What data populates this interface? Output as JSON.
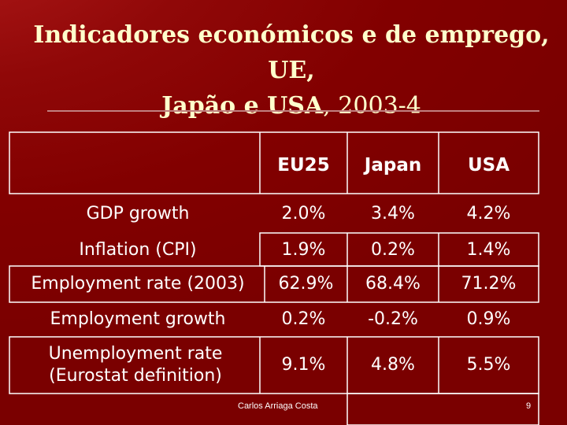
{
  "slide": {
    "title_line1": "Indicadores económicos e de emprego, UE,",
    "title_line2a": "Japão e USA",
    "title_line2b": ", 2003-4"
  },
  "table": {
    "columns": [
      "EU25",
      "Japan",
      "USA"
    ],
    "rows": [
      {
        "label": "GDP growth",
        "values": [
          "2.0%",
          "3.4%",
          "4.2%"
        ]
      },
      {
        "label": "Inflation (CPI)",
        "values": [
          "1.9%",
          "0.2%",
          "1.4%"
        ]
      },
      {
        "label": "Employment rate (2003)",
        "values": [
          "62.9%",
          "68.4%",
          "71.2%"
        ]
      },
      {
        "label": "Employment growth",
        "values": [
          "0.2%",
          "-0.2%",
          "0.9%"
        ]
      },
      {
        "label": "Unemployment rate (Eurostat definition)",
        "label_line1": "Unemployment rate",
        "label_line2": "(Eurostat definition)",
        "values": [
          "9.1%",
          "4.8%",
          "5.5%"
        ]
      }
    ]
  },
  "footer": {
    "author": "Carlos Arriaga Costa",
    "page_number": "9"
  },
  "colors": {
    "background": "#800000",
    "title": "#ffffcc",
    "text": "#ffffff",
    "border": "#ffffff"
  }
}
